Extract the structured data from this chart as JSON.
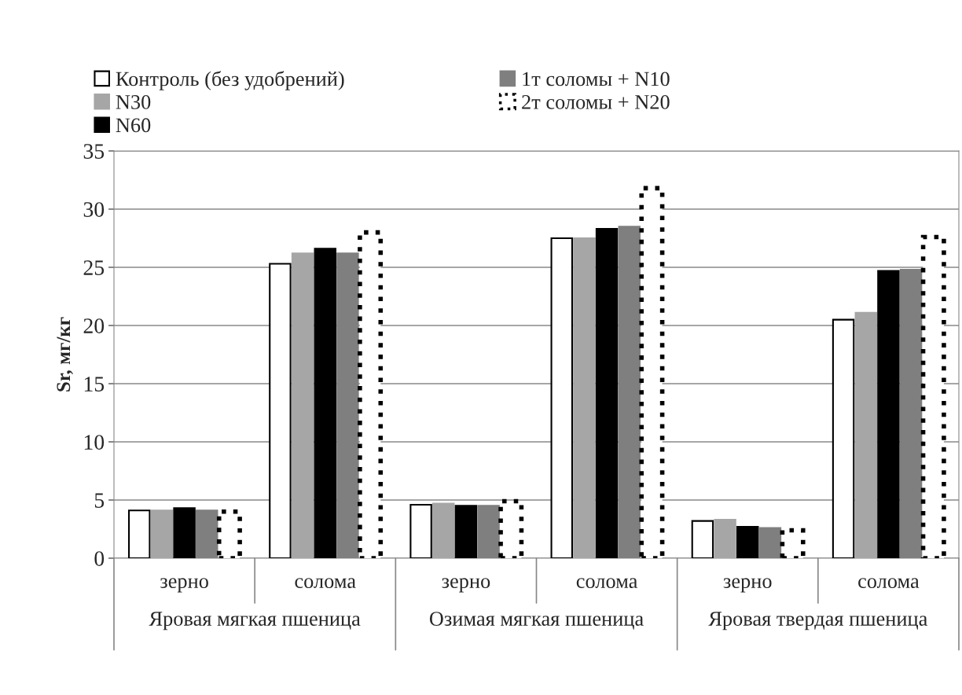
{
  "chart_data": {
    "type": "bar",
    "ylabel": "Sr, мг/кг",
    "categories": [
      "зерно",
      "солома",
      "зерно",
      "солома",
      "зерно",
      "солома"
    ],
    "annotations": [
      "Яровая мягкая пшеница",
      "Озимая мягкая пшеница",
      "Яровая твердая пшеница"
    ],
    "series": [
      {
        "name": "Контроль (без удобрений)",
        "color": "#ffffff",
        "values": [
          4.1,
          25.3,
          4.6,
          27.5,
          3.2,
          20.5
        ]
      },
      {
        "name": "N30",
        "color": "#a6a6a6",
        "values": [
          4.1,
          26.2,
          4.7,
          27.5,
          3.3,
          21.1
        ]
      },
      {
        "name": "N60",
        "color": "#000000",
        "values": [
          4.3,
          26.6,
          4.5,
          28.3,
          2.7,
          24.7
        ]
      },
      {
        "name": "1т соломы + N10",
        "color": "#7f7f7f",
        "values": [
          4.1,
          26.2,
          4.5,
          28.5,
          2.6,
          24.8
        ]
      },
      {
        "name": "2т соломы + N20",
        "color": "#ffffff",
        "line_style": "dotted",
        "values": [
          4.0,
          28.0,
          4.9,
          31.8,
          2.4,
          27.6
        ]
      }
    ],
    "ylim": [
      0,
      35
    ],
    "yticks": [
      0,
      5,
      10,
      15,
      20,
      25,
      30,
      35
    ],
    "grid": "y",
    "legend": "top"
  }
}
